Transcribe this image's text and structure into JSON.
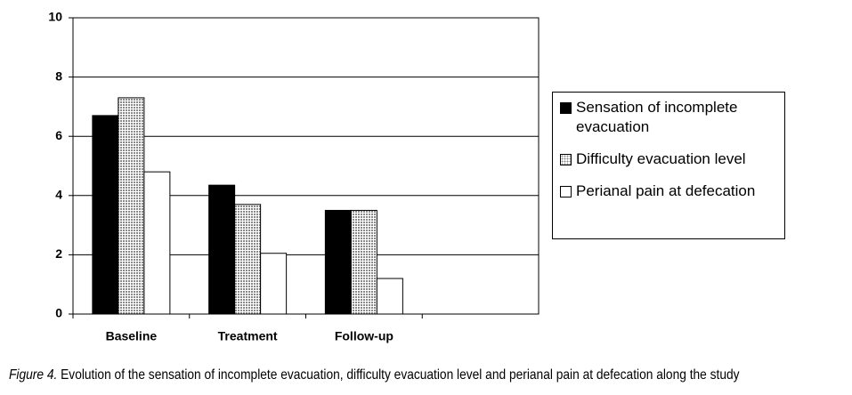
{
  "chart_data": {
    "type": "bar",
    "categories": [
      "Baseline",
      "Treatment",
      "Follow-up",
      null
    ],
    "series": [
      {
        "name": "Sensation of incomplete evacuation",
        "color": "#000000",
        "values": [
          6.7,
          4.35,
          3.5,
          null
        ]
      },
      {
        "name": "Difficulty evacuation level",
        "color": "#8a8a8a",
        "pattern": "dotted",
        "values": [
          7.3,
          3.7,
          3.5,
          null
        ]
      },
      {
        "name": "Perianal pain at defecation",
        "color": "#ffffff",
        "values": [
          4.8,
          2.05,
          1.2,
          null
        ]
      }
    ],
    "ylim": [
      0,
      10
    ],
    "yticks": [
      0,
      2,
      4,
      6,
      8,
      10
    ],
    "grid": true,
    "caption_label": "Figure 4.",
    "caption": "Evolution of the sensation of incomplete evacuation, difficulty evacuation level and perianal pain at defecation along the study"
  }
}
